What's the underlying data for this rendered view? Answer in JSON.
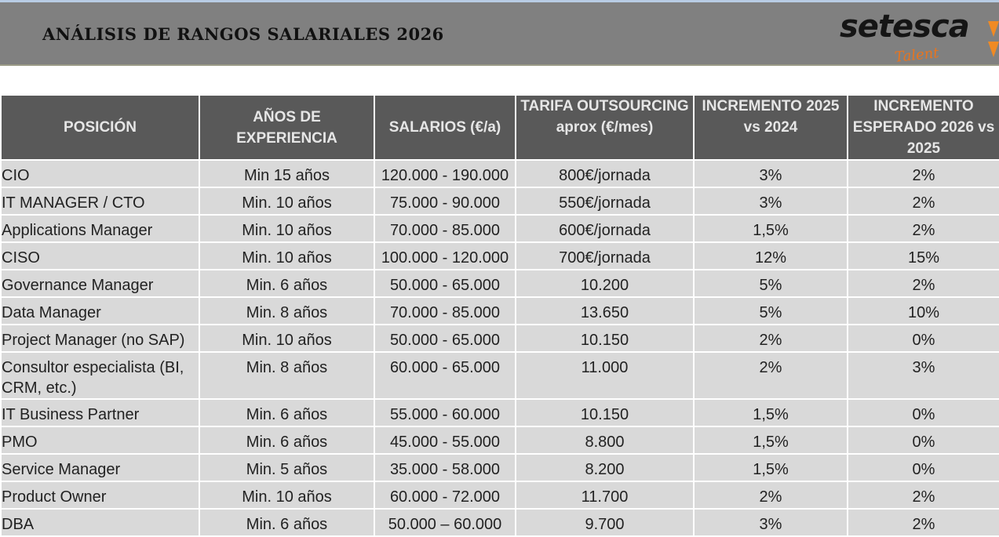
{
  "header": {
    "title": "ANÁLISIS DE RANGOS SALARIALES 2026",
    "logo": "setesca",
    "logo_sub": "Talent"
  },
  "table": {
    "columns": [
      "POSICIÓN",
      "AÑOS DE EXPERIENCIA",
      "SALARIOS (€/a)",
      "TARIFA OUTSOURCING aprox (€/mes)",
      "INCREMENTO 2025 vs 2024",
      "INCREMENTO ESPERADO 2026 vs 2025"
    ],
    "rows": [
      [
        "CIO",
        "Min  15 años",
        "120.000 - 190.000",
        "800€/jornada",
        "3%",
        "2%"
      ],
      [
        "IT MANAGER / CTO",
        "Min. 10 años",
        "75.000 - 90.000",
        "550€/jornada",
        "3%",
        "2%"
      ],
      [
        "Applications Manager",
        "Min. 10 años",
        "70.000 - 85.000",
        "600€/jornada",
        "1,5%",
        "2%"
      ],
      [
        "CISO",
        "Min. 10 años",
        "100.000 - 120.000",
        "700€/jornada",
        "12%",
        "15%"
      ],
      [
        "Governance Manager",
        "Min. 6 años",
        "50.000 - 65.000",
        "10.200",
        "5%",
        "2%"
      ],
      [
        "Data Manager",
        "Min. 8 años",
        "70.000 - 85.000",
        "13.650",
        "5%",
        "10%"
      ],
      [
        "Project Manager (no SAP)",
        "Min. 10 años",
        "50.000 - 65.000",
        "10.150",
        "2%",
        "0%"
      ],
      [
        "Consultor especialista (BI, CRM, etc.)",
        "Min. 8 años",
        "60.000 - 65.000",
        "11.000",
        "2%",
        "3%"
      ],
      [
        "IT Business Partner",
        "Min. 6 años",
        "55.000 - 60.000",
        "10.150",
        "1,5%",
        "0%"
      ],
      [
        "PMO",
        "Min. 6 años",
        "45.000 - 55.000",
        "8.800",
        "1,5%",
        "0%"
      ],
      [
        "Service Manager",
        "Min. 5 años",
        "35.000 - 58.000",
        "8.200",
        "1,5%",
        "0%"
      ],
      [
        "Product Owner",
        "Min. 10 años",
        "60.000 - 72.000",
        "11.700",
        "2%",
        "2%"
      ],
      [
        "DBA",
        "Min. 6 años",
        "50.000 – 60.000",
        "9.700",
        "3%",
        "2%"
      ]
    ]
  }
}
